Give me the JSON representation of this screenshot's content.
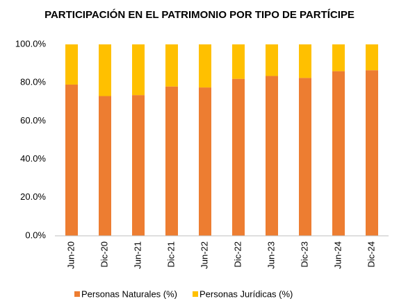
{
  "chart_data": {
    "type": "stacked_bar",
    "title": "PARTICIPACIÓN EN EL PATRIMONIO POR TIPO DE PARTÍCIPE",
    "categories": [
      "Jun-20",
      "Dic-20",
      "Jun-21",
      "Dic-21",
      "Jun-22",
      "Dic-22",
      "Jun-23",
      "Dic-23",
      "Jun-24",
      "Dic-24"
    ],
    "series": [
      {
        "name": "Personas Naturales (%)",
        "color": "#ed7d31",
        "values": [
          79,
          73,
          73.5,
          78,
          77.5,
          82,
          83.5,
          82.5,
          86,
          86.5
        ]
      },
      {
        "name": "Personas Jurídicas (%)",
        "color": "#ffc000",
        "values": [
          21,
          27,
          26.5,
          22,
          22.5,
          18,
          16.5,
          17.5,
          14,
          13.5
        ]
      }
    ],
    "ylim": [
      0,
      100
    ],
    "yticks": [
      {
        "value": 0,
        "label": "0.0%"
      },
      {
        "value": 20,
        "label": "20.0%"
      },
      {
        "value": 40,
        "label": "40.0%"
      },
      {
        "value": 60,
        "label": "60.0%"
      },
      {
        "value": 80,
        "label": "80.0%"
      },
      {
        "value": 100,
        "label": "100.0%"
      }
    ],
    "grid": false,
    "legend": "bottom"
  }
}
